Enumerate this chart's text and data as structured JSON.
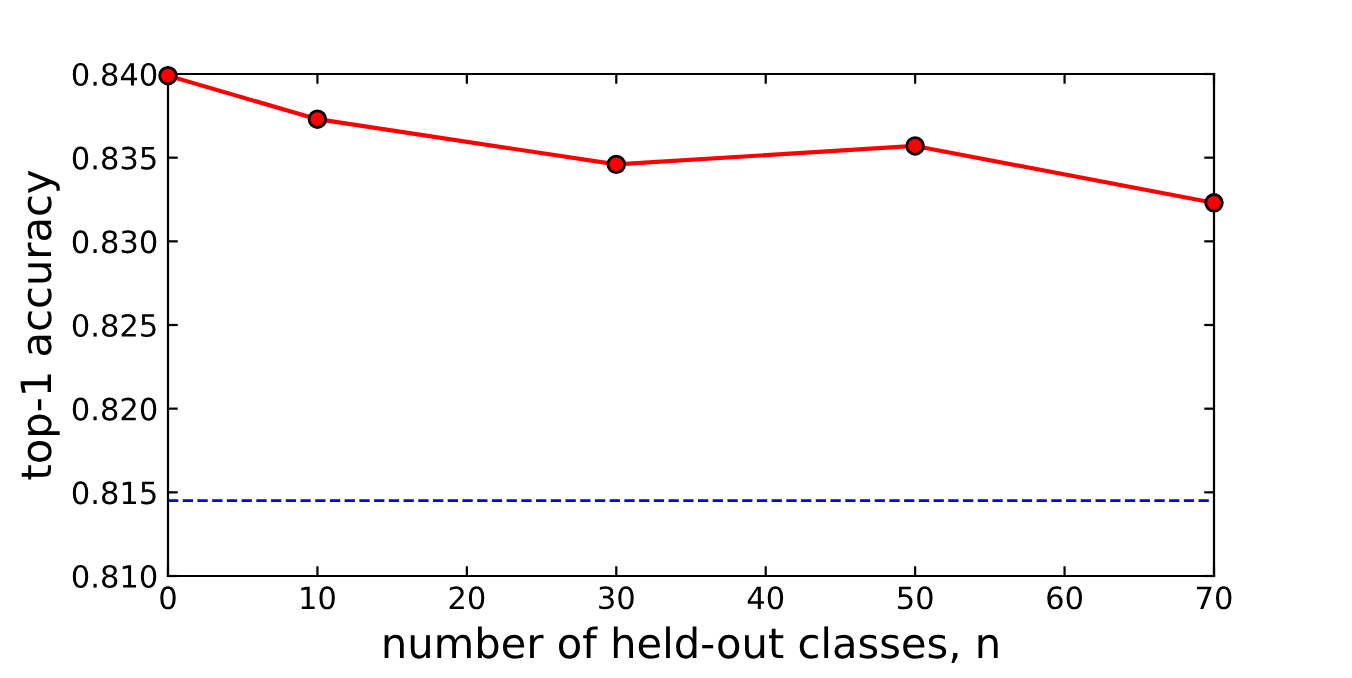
{
  "chart_data": {
    "type": "line",
    "xlabel": "number of held-out classes, n",
    "ylabel": "top-1 accuracy",
    "x": [
      0,
      10,
      30,
      50,
      70
    ],
    "series": [
      {
        "color": "#ff0000",
        "values": [
          0.8399,
          0.8373,
          0.8346,
          0.8357,
          0.8323
        ]
      }
    ],
    "marker": "circle",
    "line_style": "solid",
    "xlim": [
      0,
      70
    ],
    "xticks": [
      0,
      10,
      20,
      30,
      40,
      50,
      60,
      70
    ],
    "ylim": [
      0.81,
      0.84
    ],
    "yticks": [
      {
        "value": 0.81,
        "label": "0.810"
      },
      {
        "value": 0.815,
        "label": "0.815"
      },
      {
        "value": 0.82,
        "label": "0.820"
      },
      {
        "value": 0.825,
        "label": "0.825"
      },
      {
        "value": 0.83,
        "label": "0.830"
      },
      {
        "value": 0.835,
        "label": "0.835"
      },
      {
        "value": 0.84,
        "label": "0.840"
      }
    ],
    "ref_lines": [
      {
        "axis": "y",
        "value": 0.8145,
        "color": "#0000ff",
        "line_style": "dashed"
      }
    ],
    "grid": false
  }
}
